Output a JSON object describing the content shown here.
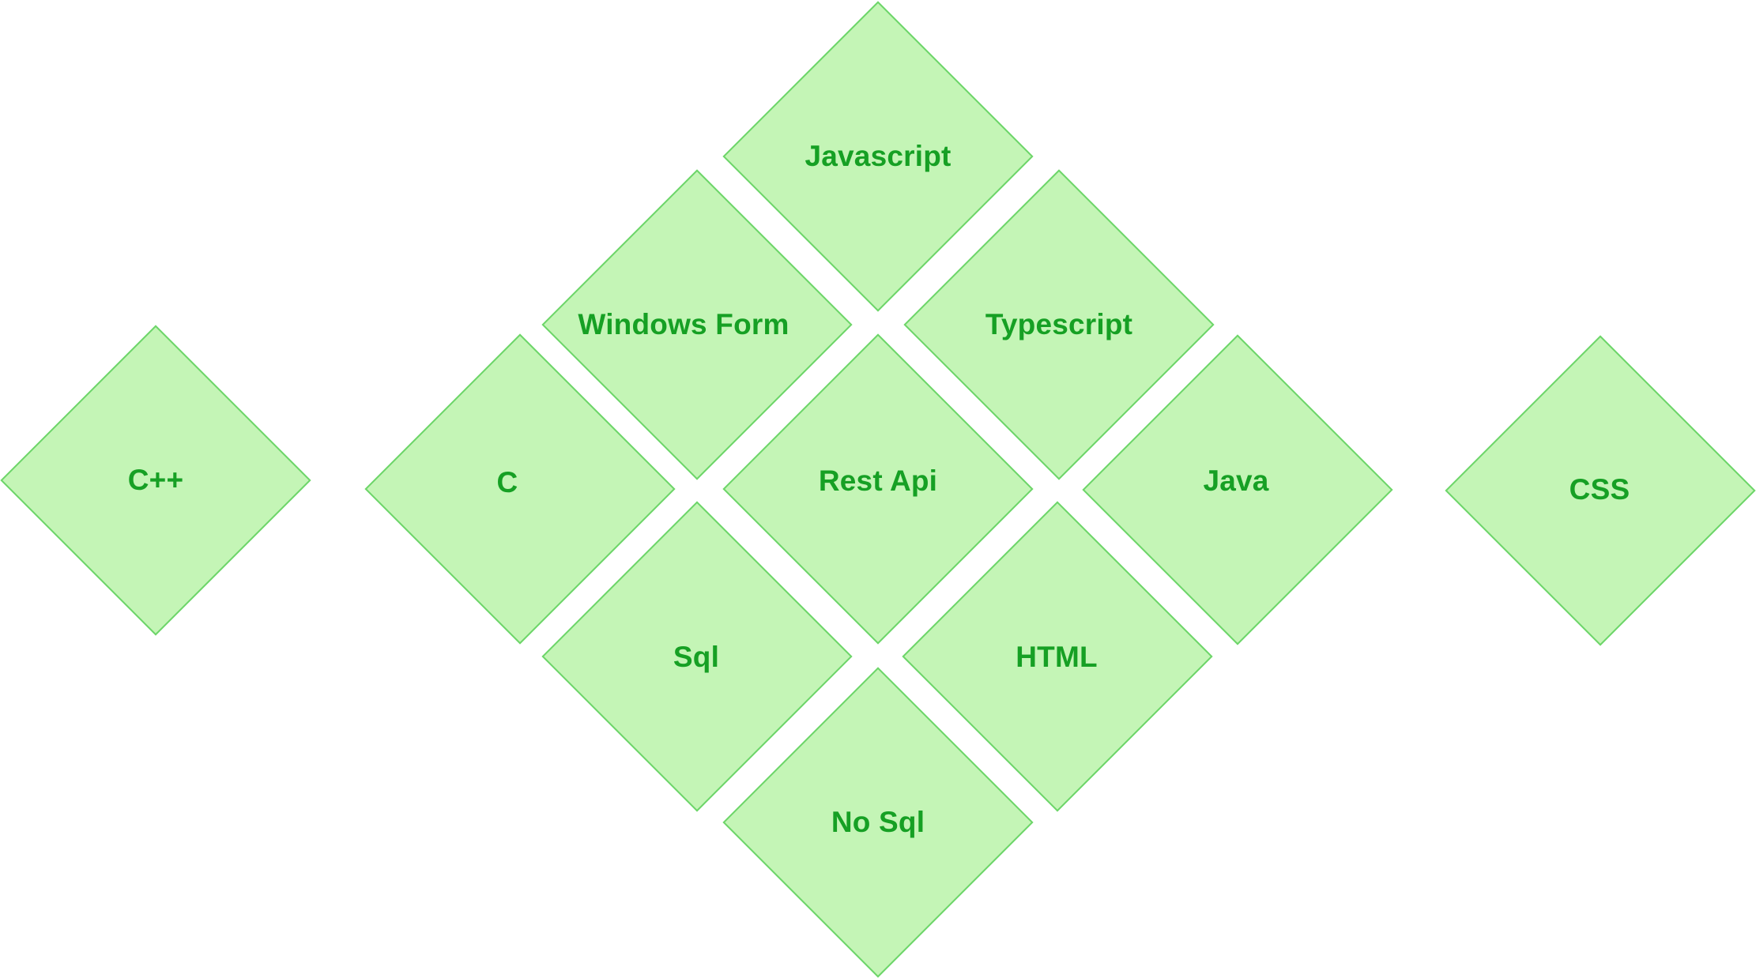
{
  "diagram": {
    "fill_color": "#c4f5b6",
    "border_color": "#6dd56a",
    "text_color": "#16a024",
    "tiles": [
      {
        "id": "javascript",
        "label": "Javascript"
      },
      {
        "id": "windows-form",
        "label": "Windows Form"
      },
      {
        "id": "typescript",
        "label": "Typescript"
      },
      {
        "id": "cpp",
        "label": "C++"
      },
      {
        "id": "c",
        "label": "C"
      },
      {
        "id": "rest-api",
        "label": "Rest Api"
      },
      {
        "id": "java",
        "label": "Java"
      },
      {
        "id": "css",
        "label": "CSS"
      },
      {
        "id": "sql",
        "label": "Sql"
      },
      {
        "id": "html",
        "label": "HTML"
      },
      {
        "id": "no-sql",
        "label": "No Sql"
      }
    ]
  }
}
